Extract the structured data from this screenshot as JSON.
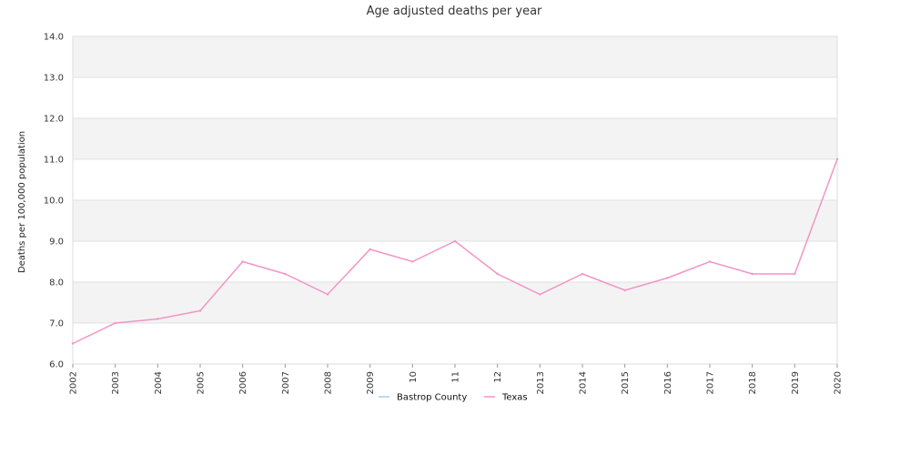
{
  "chart_data": {
    "type": "line",
    "title": "Age adjusted deaths per year",
    "ylabel": "Deaths per 100,000 population",
    "xlabel": "",
    "ylim": [
      6.0,
      14.0
    ],
    "y_ticks": [
      "6.0",
      "7.0",
      "8.0",
      "9.0",
      "10.0",
      "11.0",
      "12.0",
      "13.0",
      "14.0"
    ],
    "x": [
      "2002",
      "2003",
      "2004",
      "2005",
      "2006",
      "2007",
      "2008",
      "2009",
      "2010",
      "2011",
      "2012",
      "2013",
      "2014",
      "2015",
      "2016",
      "2017",
      "2018",
      "2019",
      "2020"
    ],
    "x_tick_labels": [
      "2002",
      "2003",
      "2004",
      "2005",
      "2006",
      "2007",
      "2008",
      "2009",
      "10",
      "11",
      "12",
      "2013",
      "2014",
      "2015",
      "2016",
      "2017",
      "2018",
      "2019",
      "2020"
    ],
    "grid": true,
    "legend_position": "bottom-center",
    "series": [
      {
        "name": "Bastrop County",
        "color": "#a9cde8",
        "values": [
          null,
          null,
          null,
          null,
          null,
          null,
          null,
          null,
          null,
          null,
          null,
          null,
          null,
          null,
          null,
          null,
          null,
          null,
          null
        ]
      },
      {
        "name": "Texas",
        "color": "#f294c6",
        "values": [
          6.5,
          7.0,
          7.1,
          7.3,
          8.5,
          8.2,
          7.7,
          8.8,
          8.5,
          9.0,
          8.2,
          7.7,
          8.2,
          7.8,
          8.1,
          8.5,
          8.2,
          8.2,
          11.0
        ]
      }
    ],
    "band_colors": [
      "#ffffff",
      "#f3f3f3"
    ]
  }
}
